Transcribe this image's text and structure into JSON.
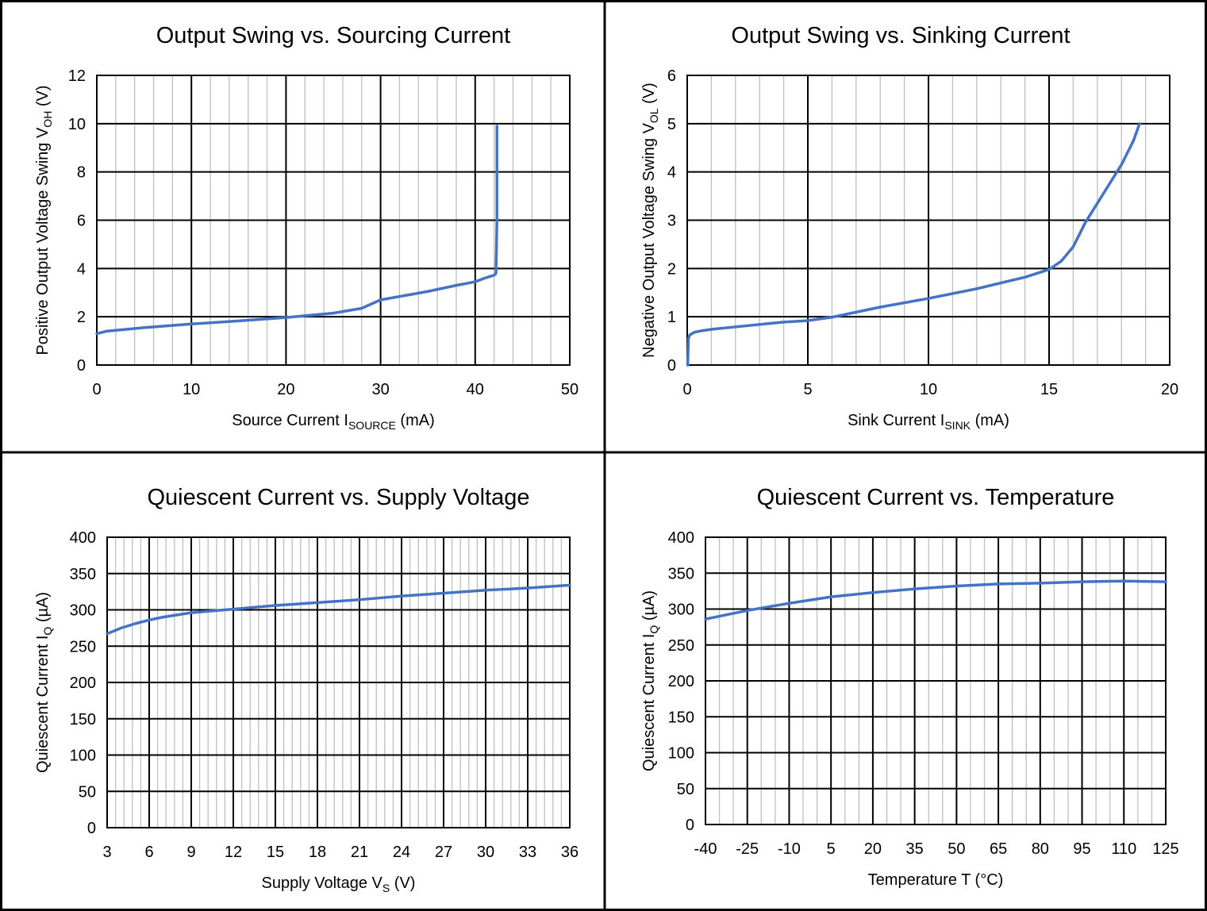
{
  "colors": {
    "line": "#4472C4",
    "major_grid": "#000000",
    "minor_grid": "#BFBFBF",
    "border": "#000000"
  },
  "chart_data": [
    {
      "type": "line",
      "title": "Output Swing vs. Sourcing Current",
      "xlabel": {
        "main": "Source Current I",
        "sub": "SOURCE",
        "tail": " (mA)"
      },
      "ylabel": {
        "main": "Positive Output Voltage Swing  V",
        "sub": "OH",
        "tail": " (V)"
      },
      "xlim": [
        0,
        50
      ],
      "ylim": [
        0,
        12
      ],
      "xticks": [
        0,
        10,
        20,
        30,
        40,
        50
      ],
      "xtick_labels": [
        "0",
        "10",
        "20",
        "30",
        "40",
        "50"
      ],
      "yticks": [
        0,
        2,
        4,
        6,
        8,
        10,
        12
      ],
      "ytick_labels": [
        "0",
        "2",
        "4",
        "6",
        "8",
        "10",
        "12"
      ],
      "x_minor_step": 2,
      "y_minor_step": 0,
      "grid": true,
      "legend": "none",
      "series": [
        {
          "x": [
            0,
            1,
            5,
            10,
            15,
            20,
            25,
            28,
            30,
            35,
            38,
            40,
            41,
            42,
            42.2,
            42.3,
            42.3
          ],
          "y": [
            1.3,
            1.4,
            1.55,
            1.7,
            1.83,
            1.97,
            2.15,
            2.35,
            2.7,
            3.05,
            3.3,
            3.45,
            3.6,
            3.72,
            3.8,
            6.0,
            9.9
          ]
        }
      ]
    },
    {
      "type": "line",
      "title": "Output Swing vs. Sinking Current",
      "xlabel": {
        "main": "Sink Current I",
        "sub": "SINK",
        "tail": " (mA)"
      },
      "ylabel": {
        "main": "Negative Output Voltage Swing V",
        "sub": "OL",
        "tail": " (V)"
      },
      "xlim": [
        0,
        20
      ],
      "ylim": [
        0,
        6
      ],
      "xticks": [
        0,
        5,
        10,
        15,
        20
      ],
      "xtick_labels": [
        "0",
        "5",
        "10",
        "15",
        "20"
      ],
      "yticks": [
        0,
        1,
        2,
        3,
        4,
        5,
        6
      ],
      "ytick_labels": [
        "0",
        "1",
        "2",
        "3",
        "4",
        "5",
        "6"
      ],
      "x_minor_step": 1,
      "y_minor_step": 0,
      "grid": true,
      "legend": "none",
      "series": [
        {
          "x": [
            0.02,
            0.05,
            0.1,
            0.3,
            0.6,
            1,
            2,
            3,
            4,
            5,
            6,
            8,
            10,
            12,
            14,
            15,
            15.5,
            16,
            16.5,
            17,
            17.5,
            18,
            18.5,
            18.75
          ],
          "y": [
            0,
            0.55,
            0.62,
            0.68,
            0.71,
            0.74,
            0.79,
            0.84,
            0.89,
            0.92,
            0.99,
            1.2,
            1.38,
            1.58,
            1.82,
            1.98,
            2.15,
            2.45,
            2.95,
            3.35,
            3.75,
            4.15,
            4.65,
            5.0
          ]
        }
      ]
    },
    {
      "type": "line",
      "title": "Quiescent Current vs. Supply Voltage",
      "xlabel": {
        "main": "Supply Voltage V",
        "sub": "S",
        "tail": " (V)"
      },
      "ylabel": {
        "main": "Quiescent Current  I",
        "sub": "Q",
        "tail": " (µA)"
      },
      "xlim": [
        3,
        36
      ],
      "ylim": [
        0,
        400
      ],
      "xticks": [
        3,
        6,
        9,
        12,
        15,
        18,
        21,
        24,
        27,
        30,
        33,
        36
      ],
      "xtick_labels": [
        "3",
        "6",
        "9",
        "12",
        "15",
        "18",
        "21",
        "24",
        "27",
        "30",
        "33",
        "36"
      ],
      "yticks": [
        0,
        50,
        100,
        150,
        200,
        250,
        300,
        350,
        400
      ],
      "ytick_labels": [
        "0",
        "50",
        "100",
        "150",
        "200",
        "250",
        "300",
        "350",
        "400"
      ],
      "x_minor_step": 0.6,
      "y_minor_step": 0,
      "grid": true,
      "legend": "none",
      "series": [
        {
          "x": [
            3,
            4,
            5,
            6,
            7,
            9,
            12,
            15,
            18,
            21,
            24,
            27,
            30,
            33,
            36
          ],
          "y": [
            267,
            275,
            281,
            286,
            290,
            296,
            301,
            306,
            310,
            314,
            319,
            323,
            327,
            330,
            334
          ]
        }
      ]
    },
    {
      "type": "line",
      "title": "Quiescent Current vs. Temperature",
      "xlabel": {
        "main": "Temperature T (°C)",
        "sub": "",
        "tail": ""
      },
      "ylabel": {
        "main": "Quiescent Current I",
        "sub": "Q",
        "tail": " (µA)"
      },
      "xlim": [
        -40,
        125
      ],
      "ylim": [
        0,
        400
      ],
      "xticks": [
        -40,
        -25,
        -10,
        5,
        20,
        35,
        50,
        65,
        80,
        95,
        110,
        125
      ],
      "xtick_labels": [
        "-40",
        "-25",
        "-10",
        "5",
        "20",
        "35",
        "50",
        "65",
        "80",
        "95",
        "110",
        "125"
      ],
      "yticks": [
        0,
        50,
        100,
        150,
        200,
        250,
        300,
        350,
        400
      ],
      "ytick_labels": [
        "0",
        "50",
        "100",
        "150",
        "200",
        "250",
        "300",
        "350",
        "400"
      ],
      "x_minor_step": 5,
      "y_minor_step": 0,
      "grid": true,
      "legend": "none",
      "series": [
        {
          "x": [
            -40,
            -25,
            -10,
            5,
            20,
            35,
            50,
            65,
            80,
            95,
            110,
            125
          ],
          "y": [
            286,
            298,
            308,
            317,
            323,
            328,
            332,
            335,
            336,
            338,
            339,
            338
          ]
        }
      ]
    }
  ]
}
